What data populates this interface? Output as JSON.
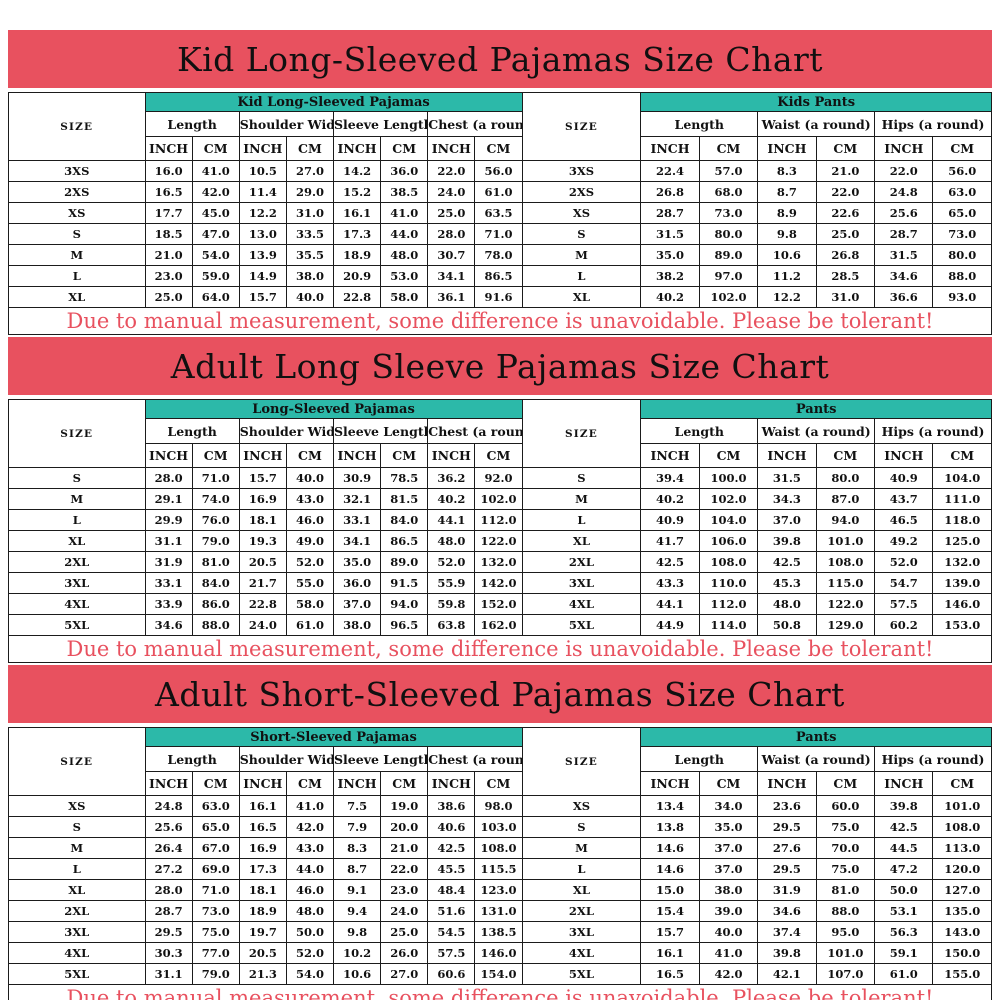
{
  "colors": {
    "banner_background": "#e8515f",
    "table_band_background": "#2cb9a9",
    "disclaimer_text": "#e8515f",
    "border": "#1b1b1b",
    "text": "#111111"
  },
  "labels": {
    "size": "SIZE",
    "inch": "INCH",
    "cm": "CM"
  },
  "disclaimer_note": "Due to manual measurement, some difference is unavoidable. Please be tolerant!",
  "sections": [
    {
      "title": "Kid Long-Sleeved Pajamas Size Chart",
      "left": {
        "header": "Kid Long-Sleeved Pajamas",
        "groups": [
          "Length",
          "Shoulder Width",
          "Sleeve Length",
          "Chest (a round)"
        ]
      },
      "right": {
        "header": "Kids Pants",
        "groups": [
          "Length",
          "Waist (a round)",
          "Hips (a round)"
        ]
      },
      "rows": [
        {
          "size": "3XS",
          "left": [
            "16.0",
            "41.0",
            "10.5",
            "27.0",
            "14.2",
            "36.0",
            "22.0",
            "56.0"
          ],
          "right": [
            "22.4",
            "57.0",
            "8.3",
            "21.0",
            "22.0",
            "56.0"
          ]
        },
        {
          "size": "2XS",
          "left": [
            "16.5",
            "42.0",
            "11.4",
            "29.0",
            "15.2",
            "38.5",
            "24.0",
            "61.0"
          ],
          "right": [
            "26.8",
            "68.0",
            "8.7",
            "22.0",
            "24.8",
            "63.0"
          ]
        },
        {
          "size": "XS",
          "left": [
            "17.7",
            "45.0",
            "12.2",
            "31.0",
            "16.1",
            "41.0",
            "25.0",
            "63.5"
          ],
          "right": [
            "28.7",
            "73.0",
            "8.9",
            "22.6",
            "25.6",
            "65.0"
          ]
        },
        {
          "size": "S",
          "left": [
            "18.5",
            "47.0",
            "13.0",
            "33.5",
            "17.3",
            "44.0",
            "28.0",
            "71.0"
          ],
          "right": [
            "31.5",
            "80.0",
            "9.8",
            "25.0",
            "28.7",
            "73.0"
          ]
        },
        {
          "size": "M",
          "left": [
            "21.0",
            "54.0",
            "13.9",
            "35.5",
            "18.9",
            "48.0",
            "30.7",
            "78.0"
          ],
          "right": [
            "35.0",
            "89.0",
            "10.6",
            "26.8",
            "31.5",
            "80.0"
          ]
        },
        {
          "size": "L",
          "left": [
            "23.0",
            "59.0",
            "14.9",
            "38.0",
            "20.9",
            "53.0",
            "34.1",
            "86.5"
          ],
          "right": [
            "38.2",
            "97.0",
            "11.2",
            "28.5",
            "34.6",
            "88.0"
          ]
        },
        {
          "size": "XL",
          "left": [
            "25.0",
            "64.0",
            "15.7",
            "40.0",
            "22.8",
            "58.0",
            "36.1",
            "91.6"
          ],
          "right": [
            "40.2",
            "102.0",
            "12.2",
            "31.0",
            "36.6",
            "93.0"
          ]
        }
      ]
    },
    {
      "title": "Adult Long Sleeve Pajamas Size Chart",
      "left": {
        "header": "Long-Sleeved Pajamas",
        "groups": [
          "Length",
          "Shoulder Width",
          "Sleeve Length",
          "Chest (a round)"
        ]
      },
      "right": {
        "header": "Pants",
        "groups": [
          "Length",
          "Waist (a round)",
          "Hips (a round)"
        ]
      },
      "rows": [
        {
          "size": "S",
          "left": [
            "28.0",
            "71.0",
            "15.7",
            "40.0",
            "30.9",
            "78.5",
            "36.2",
            "92.0"
          ],
          "right": [
            "39.4",
            "100.0",
            "31.5",
            "80.0",
            "40.9",
            "104.0"
          ]
        },
        {
          "size": "M",
          "left": [
            "29.1",
            "74.0",
            "16.9",
            "43.0",
            "32.1",
            "81.5",
            "40.2",
            "102.0"
          ],
          "right": [
            "40.2",
            "102.0",
            "34.3",
            "87.0",
            "43.7",
            "111.0"
          ]
        },
        {
          "size": "L",
          "left": [
            "29.9",
            "76.0",
            "18.1",
            "46.0",
            "33.1",
            "84.0",
            "44.1",
            "112.0"
          ],
          "right": [
            "40.9",
            "104.0",
            "37.0",
            "94.0",
            "46.5",
            "118.0"
          ]
        },
        {
          "size": "XL",
          "left": [
            "31.1",
            "79.0",
            "19.3",
            "49.0",
            "34.1",
            "86.5",
            "48.0",
            "122.0"
          ],
          "right": [
            "41.7",
            "106.0",
            "39.8",
            "101.0",
            "49.2",
            "125.0"
          ]
        },
        {
          "size": "2XL",
          "left": [
            "31.9",
            "81.0",
            "20.5",
            "52.0",
            "35.0",
            "89.0",
            "52.0",
            "132.0"
          ],
          "right": [
            "42.5",
            "108.0",
            "42.5",
            "108.0",
            "52.0",
            "132.0"
          ]
        },
        {
          "size": "3XL",
          "left": [
            "33.1",
            "84.0",
            "21.7",
            "55.0",
            "36.0",
            "91.5",
            "55.9",
            "142.0"
          ],
          "right": [
            "43.3",
            "110.0",
            "45.3",
            "115.0",
            "54.7",
            "139.0"
          ]
        },
        {
          "size": "4XL",
          "left": [
            "33.9",
            "86.0",
            "22.8",
            "58.0",
            "37.0",
            "94.0",
            "59.8",
            "152.0"
          ],
          "right": [
            "44.1",
            "112.0",
            "48.0",
            "122.0",
            "57.5",
            "146.0"
          ]
        },
        {
          "size": "5XL",
          "left": [
            "34.6",
            "88.0",
            "24.0",
            "61.0",
            "38.0",
            "96.5",
            "63.8",
            "162.0"
          ],
          "right": [
            "44.9",
            "114.0",
            "50.8",
            "129.0",
            "60.2",
            "153.0"
          ]
        }
      ]
    },
    {
      "title": "Adult Short-Sleeved Pajamas Size Chart",
      "left": {
        "header": "Short-Sleeved Pajamas",
        "groups": [
          "Length",
          "Shoulder Width",
          "Sleeve Length",
          "Chest (a round)"
        ]
      },
      "right": {
        "header": "Pants",
        "groups": [
          "Length",
          "Waist (a round)",
          "Hips (a round)"
        ]
      },
      "rows": [
        {
          "size": "XS",
          "left": [
            "24.8",
            "63.0",
            "16.1",
            "41.0",
            "7.5",
            "19.0",
            "38.6",
            "98.0"
          ],
          "right": [
            "13.4",
            "34.0",
            "23.6",
            "60.0",
            "39.8",
            "101.0"
          ]
        },
        {
          "size": "S",
          "left": [
            "25.6",
            "65.0",
            "16.5",
            "42.0",
            "7.9",
            "20.0",
            "40.6",
            "103.0"
          ],
          "right": [
            "13.8",
            "35.0",
            "29.5",
            "75.0",
            "42.5",
            "108.0"
          ]
        },
        {
          "size": "M",
          "left": [
            "26.4",
            "67.0",
            "16.9",
            "43.0",
            "8.3",
            "21.0",
            "42.5",
            "108.0"
          ],
          "right": [
            "14.6",
            "37.0",
            "27.6",
            "70.0",
            "44.5",
            "113.0"
          ]
        },
        {
          "size": "L",
          "left": [
            "27.2",
            "69.0",
            "17.3",
            "44.0",
            "8.7",
            "22.0",
            "45.5",
            "115.5"
          ],
          "right": [
            "14.6",
            "37.0",
            "29.5",
            "75.0",
            "47.2",
            "120.0"
          ]
        },
        {
          "size": "XL",
          "left": [
            "28.0",
            "71.0",
            "18.1",
            "46.0",
            "9.1",
            "23.0",
            "48.4",
            "123.0"
          ],
          "right": [
            "15.0",
            "38.0",
            "31.9",
            "81.0",
            "50.0",
            "127.0"
          ]
        },
        {
          "size": "2XL",
          "left": [
            "28.7",
            "73.0",
            "18.9",
            "48.0",
            "9.4",
            "24.0",
            "51.6",
            "131.0"
          ],
          "right": [
            "15.4",
            "39.0",
            "34.6",
            "88.0",
            "53.1",
            "135.0"
          ]
        },
        {
          "size": "3XL",
          "left": [
            "29.5",
            "75.0",
            "19.7",
            "50.0",
            "9.8",
            "25.0",
            "54.5",
            "138.5"
          ],
          "right": [
            "15.7",
            "40.0",
            "37.4",
            "95.0",
            "56.3",
            "143.0"
          ]
        },
        {
          "size": "4XL",
          "left": [
            "30.3",
            "77.0",
            "20.5",
            "52.0",
            "10.2",
            "26.0",
            "57.5",
            "146.0"
          ],
          "right": [
            "16.1",
            "41.0",
            "39.8",
            "101.0",
            "59.1",
            "150.0"
          ]
        },
        {
          "size": "5XL",
          "left": [
            "31.1",
            "79.0",
            "21.3",
            "54.0",
            "10.6",
            "27.0",
            "60.6",
            "154.0"
          ],
          "right": [
            "16.5",
            "42.0",
            "42.1",
            "107.0",
            "61.0",
            "155.0"
          ]
        }
      ]
    }
  ]
}
